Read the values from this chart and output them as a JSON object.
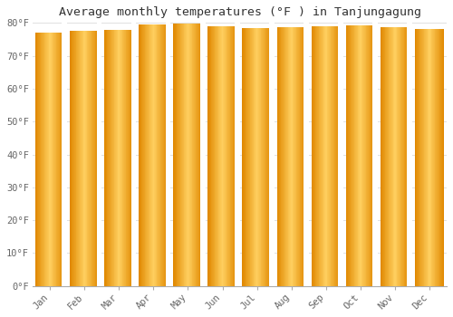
{
  "title": "Average monthly temperatures (°F ) in Tanjungagung",
  "months": [
    "Jan",
    "Feb",
    "Mar",
    "Apr",
    "May",
    "Jun",
    "Jul",
    "Aug",
    "Sep",
    "Oct",
    "Nov",
    "Dec"
  ],
  "values": [
    77.0,
    77.5,
    78.0,
    79.5,
    79.7,
    79.0,
    78.3,
    78.8,
    79.0,
    79.3,
    78.8,
    78.1
  ],
  "ylim": [
    0,
    80
  ],
  "yticks": [
    0,
    10,
    20,
    30,
    40,
    50,
    60,
    70,
    80
  ],
  "ytick_labels": [
    "0°F",
    "10°F",
    "20°F",
    "30°F",
    "40°F",
    "50°F",
    "60°F",
    "70°F",
    "80°F"
  ],
  "bar_color_center": "#FFD060",
  "bar_color_edge": "#E08800",
  "background_color": "#FFFFFF",
  "grid_color": "#E0E0E0",
  "title_fontsize": 9.5,
  "tick_fontsize": 7.5,
  "font_family": "monospace",
  "bar_width": 0.85,
  "num_gradient_steps": 40
}
